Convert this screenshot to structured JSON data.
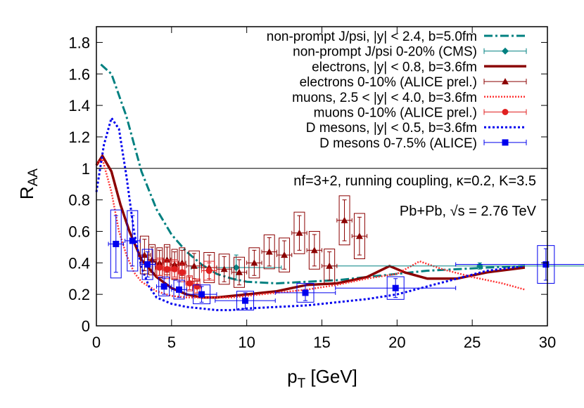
{
  "chart_data": {
    "type": "line",
    "xlabel_main": "p",
    "xlabel_sub": "T",
    "xlabel_unit": " [GeV]",
    "ylabel_main": "R",
    "ylabel_sub": "AA",
    "xlim": [
      0,
      30
    ],
    "ylim": [
      0,
      1.9
    ],
    "xticks": [
      "0",
      "5",
      "10",
      "15",
      "20",
      "25",
      "30"
    ],
    "yticks": [
      "0",
      "0.2",
      "0.4",
      "0.6",
      "0.8",
      "1",
      "1.2",
      "1.4",
      "1.6",
      "1.8"
    ],
    "annotation_1": "nf=3+2, running coupling, κ=0.2, K=3.5",
    "annotation_2": "Pb+Pb, √s = 2.76 TeV",
    "reference_line": 1,
    "series": [
      {
        "name": "non-prompt J/psi, |y| < 2.4, b=5.0fm",
        "kind": "curve",
        "color": "#008080",
        "x": [
          0.3,
          1,
          2,
          3,
          4,
          5,
          6,
          7,
          8,
          9,
          10,
          12,
          14,
          16,
          18,
          20,
          22,
          24,
          26,
          28.5
        ],
        "y": [
          1.66,
          1.6,
          1.33,
          0.98,
          0.74,
          0.58,
          0.47,
          0.39,
          0.33,
          0.3,
          0.28,
          0.27,
          0.28,
          0.29,
          0.31,
          0.33,
          0.35,
          0.36,
          0.37,
          0.38
        ]
      },
      {
        "name": "non-prompt J/psi 0-20% (CMS)",
        "kind": "data",
        "color": "#008080",
        "points": [
          {
            "x": 9.3,
            "y": 0.37,
            "ex": 3.0,
            "ey": 0.08
          },
          {
            "x": 25.5,
            "y": 0.38,
            "ex": 10.0,
            "ey": 0.02
          }
        ]
      },
      {
        "name": "electrons, |y| < 0.8, b=3.6fm",
        "kind": "curve",
        "color": "#8b0000",
        "x": [
          0,
          0.4,
          1,
          1.6,
          2.2,
          3,
          4,
          5,
          6,
          7,
          8,
          9,
          10,
          12,
          14,
          16,
          18,
          19.5,
          20.5,
          22,
          24,
          26,
          28.5
        ],
        "y": [
          1.02,
          1.08,
          0.98,
          0.77,
          0.6,
          0.42,
          0.31,
          0.24,
          0.2,
          0.18,
          0.18,
          0.19,
          0.2,
          0.22,
          0.26,
          0.27,
          0.31,
          0.38,
          0.34,
          0.3,
          0.3,
          0.34,
          0.37
        ]
      },
      {
        "name": "electrons 0-10% (ALICE prel.)",
        "kind": "data",
        "color": "#8b0000",
        "points": [
          {
            "x": 3.2,
            "y": 0.45,
            "ex": 0.4,
            "ey": 0.1
          },
          {
            "x": 3.7,
            "y": 0.42,
            "ex": 0.3,
            "ey": 0.08
          },
          {
            "x": 4.2,
            "y": 0.4,
            "ex": 0.25,
            "ey": 0.08
          },
          {
            "x": 4.7,
            "y": 0.42,
            "ex": 0.25,
            "ey": 0.08
          },
          {
            "x": 5.2,
            "y": 0.39,
            "ex": 0.25,
            "ey": 0.08
          },
          {
            "x": 5.7,
            "y": 0.4,
            "ex": 0.25,
            "ey": 0.08
          },
          {
            "x": 6.5,
            "y": 0.38,
            "ex": 0.5,
            "ey": 0.08
          },
          {
            "x": 7.5,
            "y": 0.37,
            "ex": 0.5,
            "ey": 0.08
          },
          {
            "x": 8.5,
            "y": 0.36,
            "ex": 0.5,
            "ey": 0.08
          },
          {
            "x": 9.5,
            "y": 0.34,
            "ex": 0.5,
            "ey": 0.08
          },
          {
            "x": 10.5,
            "y": 0.4,
            "ex": 0.5,
            "ey": 0.08
          },
          {
            "x": 11.5,
            "y": 0.47,
            "ex": 0.5,
            "ey": 0.09
          },
          {
            "x": 12.5,
            "y": 0.45,
            "ex": 0.5,
            "ey": 0.09
          },
          {
            "x": 13.5,
            "y": 0.59,
            "ex": 0.5,
            "ey": 0.11
          },
          {
            "x": 14.5,
            "y": 0.48,
            "ex": 0.5,
            "ey": 0.1
          },
          {
            "x": 15.5,
            "y": 0.38,
            "ex": 0.5,
            "ey": 0.09
          },
          {
            "x": 16.5,
            "y": 0.67,
            "ex": 0.5,
            "ey": 0.13
          },
          {
            "x": 17.5,
            "y": 0.57,
            "ex": 0.5,
            "ey": 0.12
          }
        ]
      },
      {
        "name": "muons, 2.5 < |y| < 4.0, b=3.6fm",
        "kind": "curve",
        "color": "#ff3333",
        "x": [
          0,
          0.4,
          1,
          1.5,
          2,
          2.5,
          3,
          4,
          5,
          6,
          7,
          8,
          9,
          10,
          12,
          14,
          16,
          18,
          20,
          21.5,
          23,
          25,
          27,
          28.5
        ],
        "y": [
          1.03,
          1.06,
          0.85,
          0.6,
          0.45,
          0.34,
          0.28,
          0.22,
          0.19,
          0.18,
          0.18,
          0.18,
          0.18,
          0.19,
          0.21,
          0.23,
          0.26,
          0.3,
          0.33,
          0.41,
          0.36,
          0.31,
          0.27,
          0.23
        ]
      },
      {
        "name": "muons 0-10% (ALICE prel.)",
        "kind": "data",
        "color": "#e02020",
        "points": [
          {
            "x": 4.2,
            "y": 0.37,
            "ex": 0.25,
            "ey": 0.05
          },
          {
            "x": 4.7,
            "y": 0.36,
            "ex": 0.25,
            "ey": 0.05
          },
          {
            "x": 5.2,
            "y": 0.36,
            "ex": 0.25,
            "ey": 0.05
          },
          {
            "x": 5.7,
            "y": 0.34,
            "ex": 0.25,
            "ey": 0.05
          },
          {
            "x": 6.2,
            "y": 0.27,
            "ex": 0.25,
            "ey": 0.04
          },
          {
            "x": 6.7,
            "y": 0.25,
            "ex": 0.25,
            "ey": 0.04
          },
          {
            "x": 7.5,
            "y": 0.35,
            "ex": 0.5,
            "ey": 0.05
          }
        ]
      },
      {
        "name": "D mesons, |y| < 0.5, b=3.6fm",
        "kind": "curve",
        "color": "#0000ee",
        "x": [
          0,
          0.5,
          1,
          1.5,
          2,
          2.5,
          3,
          3.5,
          4,
          5,
          6,
          7,
          8,
          9,
          10,
          12,
          14,
          16,
          18,
          20,
          22,
          24,
          26,
          28.5
        ],
        "y": [
          0.85,
          1.15,
          1.32,
          1.25,
          0.95,
          0.6,
          0.37,
          0.25,
          0.18,
          0.14,
          0.12,
          0.11,
          0.1,
          0.1,
          0.11,
          0.12,
          0.13,
          0.15,
          0.17,
          0.2,
          0.25,
          0.3,
          0.35,
          0.38
        ]
      },
      {
        "name": "D mesons 0-7.5% (ALICE)",
        "kind": "data",
        "color": "#0000ee",
        "points": [
          {
            "x": 1.3,
            "y": 0.52,
            "ex": 0.5,
            "ey": 0.18
          },
          {
            "x": 2.4,
            "y": 0.54,
            "ex": 0.5,
            "ey": 0.16
          },
          {
            "x": 3.4,
            "y": 0.39,
            "ex": 0.5,
            "ey": 0.08
          },
          {
            "x": 4.5,
            "y": 0.25,
            "ex": 0.5,
            "ey": 0.05
          },
          {
            "x": 5.5,
            "y": 0.23,
            "ex": 0.5,
            "ey": 0.05
          },
          {
            "x": 7.0,
            "y": 0.2,
            "ex": 1.0,
            "ey": 0.05
          },
          {
            "x": 9.9,
            "y": 0.16,
            "ex": 2.0,
            "ey": 0.05
          },
          {
            "x": 13.9,
            "y": 0.21,
            "ex": 2.0,
            "ey": 0.05
          },
          {
            "x": 19.9,
            "y": 0.24,
            "ex": 4.0,
            "ey": 0.06
          },
          {
            "x": 29.9,
            "y": 0.39,
            "ex": 6.0,
            "ey": 0.1
          }
        ]
      }
    ]
  }
}
